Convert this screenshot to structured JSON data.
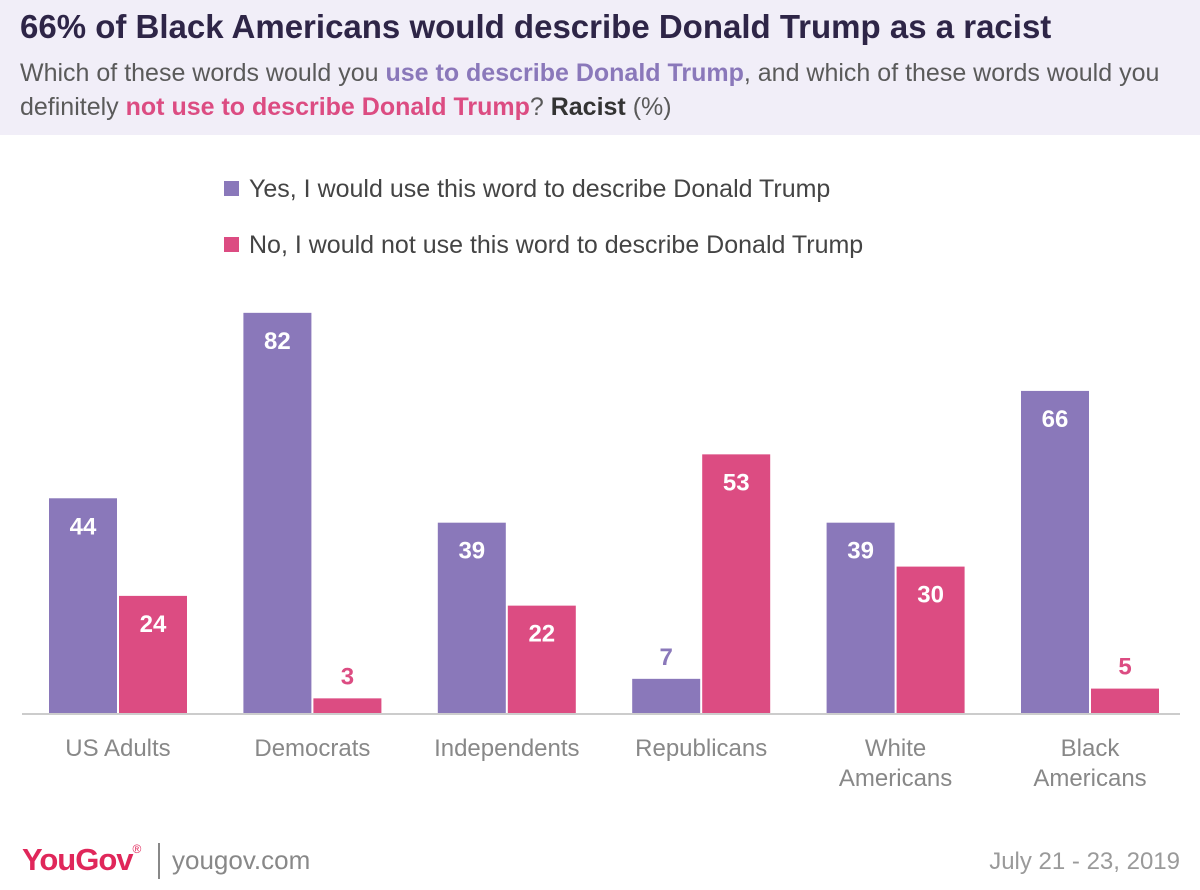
{
  "header": {
    "title": "66% of Black Americans would describe Donald Trump as a racist",
    "subtitle": {
      "part1": "Which of these words would you ",
      "highlight_yes": "use to describe Donald Trump",
      "part2": ", and which of these words would you definitely ",
      "highlight_no": "not use to describe Donald Trump",
      "part3": "? ",
      "bold_word": "Racist",
      "part4": " (%)"
    }
  },
  "colors": {
    "yes": "#8a78ba",
    "no": "#dc4c82",
    "axis": "#cccccc",
    "header_bg": "#f1eef8"
  },
  "chart_data": {
    "type": "bar",
    "categories": [
      "US Adults",
      "Democrats",
      "Independents",
      "Republicans",
      "White Americans",
      "Black Americans"
    ],
    "category_lines": [
      [
        "US Adults"
      ],
      [
        "Democrats"
      ],
      [
        "Independents"
      ],
      [
        "Republicans"
      ],
      [
        "White",
        "Americans"
      ],
      [
        "Black",
        "Americans"
      ]
    ],
    "series": [
      {
        "name": "Yes, I would use this word to describe Donald Trump",
        "color": "#8a78ba",
        "values": [
          44,
          82,
          39,
          7,
          39,
          66
        ]
      },
      {
        "name": "No, I would not use this word to describe Donald Trump",
        "color": "#dc4c82",
        "values": [
          24,
          3,
          22,
          53,
          30,
          5
        ]
      }
    ],
    "ylim": [
      0,
      100
    ],
    "legend_position": "top",
    "grid": false,
    "data_labels": true
  },
  "footer": {
    "logo": "YouGov",
    "logo_mark": "®",
    "site": "yougov.com",
    "date": "July 21 - 23, 2019"
  }
}
